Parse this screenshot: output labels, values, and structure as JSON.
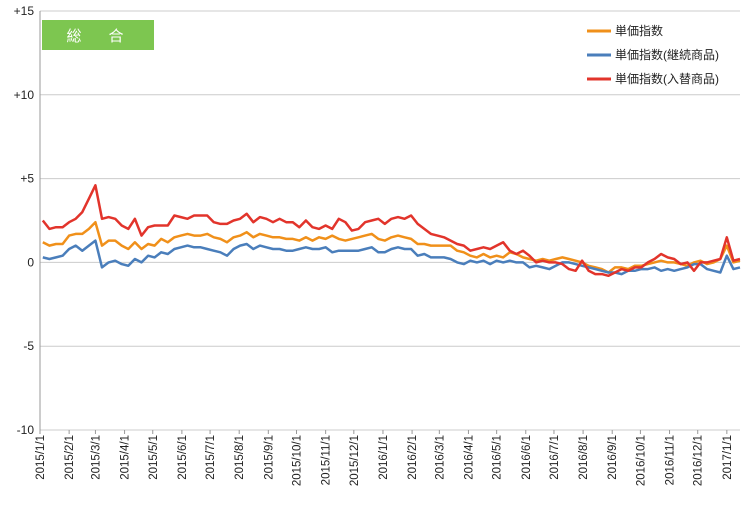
{
  "chart_data": {
    "type": "line",
    "badge": "総　合",
    "ylim": [
      -10,
      15
    ],
    "y_ticks": [
      "+15",
      "+10",
      "+5",
      "0",
      "-5",
      "-10"
    ],
    "y_tick_values": [
      15,
      10,
      5,
      0,
      -5,
      -10
    ],
    "x_tick_labels": [
      "2015/1/1",
      "2015/2/1",
      "2015/3/1",
      "2015/4/1",
      "2015/5/1",
      "2015/6/1",
      "2015/7/1",
      "2015/8/1",
      "2015/9/1",
      "2015/10/1",
      "2015/11/1",
      "2015/12/1",
      "2016/1/1",
      "2016/2/1",
      "2016/3/1",
      "2016/4/1",
      "2016/5/1",
      "2016/6/1",
      "2016/7/1",
      "2016/8/1",
      "2016/9/1",
      "2016/10/1",
      "2016/11/1",
      "2016/12/1",
      "2017/1/1"
    ],
    "x_range": [
      "2015/1/1",
      "2017/1/15"
    ],
    "grid": "horizontal",
    "legend_position": "top-right",
    "colors": {
      "badge": "#7dc650",
      "grid": "#cccccc"
    },
    "series": [
      {
        "name": "単価指数",
        "color": "#f0901a",
        "x": [
          "2015/1/4",
          "2015/1/11",
          "2015/1/18",
          "2015/1/25",
          "2015/2/1",
          "2015/2/8",
          "2015/2/15",
          "2015/2/22",
          "2015/3/1",
          "2015/3/8",
          "2015/3/15",
          "2015/3/22",
          "2015/3/29",
          "2015/4/5",
          "2015/4/12",
          "2015/4/19",
          "2015/4/26",
          "2015/5/3",
          "2015/5/10",
          "2015/5/17",
          "2015/5/24",
          "2015/5/31",
          "2015/6/7",
          "2015/6/14",
          "2015/6/21",
          "2015/6/28",
          "2015/7/5",
          "2015/7/12",
          "2015/7/19",
          "2015/7/26",
          "2015/8/2",
          "2015/8/9",
          "2015/8/16",
          "2015/8/23",
          "2015/8/30",
          "2015/9/6",
          "2015/9/13",
          "2015/9/20",
          "2015/9/27",
          "2015/10/4",
          "2015/10/11",
          "2015/10/18",
          "2015/10/25",
          "2015/11/1",
          "2015/11/8",
          "2015/11/15",
          "2015/11/22",
          "2015/11/29",
          "2015/12/6",
          "2015/12/13",
          "2015/12/20",
          "2015/12/27",
          "2016/1/3",
          "2016/1/10",
          "2016/1/17",
          "2016/1/24",
          "2016/1/31",
          "2016/2/7",
          "2016/2/14",
          "2016/2/21",
          "2016/2/28",
          "2016/3/6",
          "2016/3/13",
          "2016/3/20",
          "2016/3/27",
          "2016/4/3",
          "2016/4/10",
          "2016/4/17",
          "2016/4/24",
          "2016/5/1",
          "2016/5/8",
          "2016/5/15",
          "2016/5/22",
          "2016/5/29",
          "2016/6/5",
          "2016/6/12",
          "2016/6/19",
          "2016/6/26",
          "2016/7/3",
          "2016/7/10",
          "2016/7/17",
          "2016/7/24",
          "2016/7/31",
          "2016/8/7",
          "2016/8/14",
          "2016/8/21",
          "2016/8/28",
          "2016/9/4",
          "2016/9/11",
          "2016/9/18",
          "2016/9/25",
          "2016/10/2",
          "2016/10/9",
          "2016/10/16",
          "2016/10/23",
          "2016/10/30",
          "2016/11/6",
          "2016/11/13",
          "2016/11/20",
          "2016/11/27",
          "2016/12/4",
          "2016/12/11",
          "2016/12/18",
          "2016/12/25",
          "2017/1/1",
          "2017/1/8",
          "2017/1/15"
        ],
        "values": [
          1.2,
          1.0,
          1.1,
          1.1,
          1.6,
          1.7,
          1.7,
          2.0,
          2.4,
          1.0,
          1.3,
          1.3,
          1.0,
          0.8,
          1.2,
          0.8,
          1.1,
          1.0,
          1.4,
          1.2,
          1.5,
          1.6,
          1.7,
          1.6,
          1.6,
          1.7,
          1.5,
          1.4,
          1.2,
          1.5,
          1.6,
          1.8,
          1.5,
          1.7,
          1.6,
          1.5,
          1.5,
          1.4,
          1.4,
          1.3,
          1.5,
          1.3,
          1.5,
          1.4,
          1.6,
          1.4,
          1.3,
          1.4,
          1.5,
          1.6,
          1.7,
          1.4,
          1.3,
          1.5,
          1.6,
          1.5,
          1.4,
          1.1,
          1.1,
          1.0,
          1.0,
          1.0,
          1.0,
          0.7,
          0.6,
          0.4,
          0.3,
          0.5,
          0.3,
          0.4,
          0.3,
          0.6,
          0.5,
          0.3,
          0.2,
          0.1,
          0.2,
          0.1,
          0.2,
          0.3,
          0.2,
          0.1,
          0.0,
          -0.2,
          -0.3,
          -0.4,
          -0.6,
          -0.3,
          -0.3,
          -0.4,
          -0.2,
          -0.2,
          -0.1,
          0.0,
          0.1,
          0.0,
          0.0,
          -0.1,
          -0.2,
          0.0,
          0.1,
          -0.1,
          0.0,
          0.2,
          1.0,
          0.0,
          0.1
        ]
      },
      {
        "name": "単価指数(継続商品)",
        "color": "#4a7ebb",
        "x": [
          "2015/1/4",
          "2015/1/11",
          "2015/1/18",
          "2015/1/25",
          "2015/2/1",
          "2015/2/8",
          "2015/2/15",
          "2015/2/22",
          "2015/3/1",
          "2015/3/8",
          "2015/3/15",
          "2015/3/22",
          "2015/3/29",
          "2015/4/5",
          "2015/4/12",
          "2015/4/19",
          "2015/4/26",
          "2015/5/3",
          "2015/5/10",
          "2015/5/17",
          "2015/5/24",
          "2015/5/31",
          "2015/6/7",
          "2015/6/14",
          "2015/6/21",
          "2015/6/28",
          "2015/7/5",
          "2015/7/12",
          "2015/7/19",
          "2015/7/26",
          "2015/8/2",
          "2015/8/9",
          "2015/8/16",
          "2015/8/23",
          "2015/8/30",
          "2015/9/6",
          "2015/9/13",
          "2015/9/20",
          "2015/9/27",
          "2015/10/4",
          "2015/10/11",
          "2015/10/18",
          "2015/10/25",
          "2015/11/1",
          "2015/11/8",
          "2015/11/15",
          "2015/11/22",
          "2015/11/29",
          "2015/12/6",
          "2015/12/13",
          "2015/12/20",
          "2015/12/27",
          "2016/1/3",
          "2016/1/10",
          "2016/1/17",
          "2016/1/24",
          "2016/1/31",
          "2016/2/7",
          "2016/2/14",
          "2016/2/21",
          "2016/2/28",
          "2016/3/6",
          "2016/3/13",
          "2016/3/20",
          "2016/3/27",
          "2016/4/3",
          "2016/4/10",
          "2016/4/17",
          "2016/4/24",
          "2016/5/1",
          "2016/5/8",
          "2016/5/15",
          "2016/5/22",
          "2016/5/29",
          "2016/6/5",
          "2016/6/12",
          "2016/6/19",
          "2016/6/26",
          "2016/7/3",
          "2016/7/10",
          "2016/7/17",
          "2016/7/24",
          "2016/7/31",
          "2016/8/7",
          "2016/8/14",
          "2016/8/21",
          "2016/8/28",
          "2016/9/4",
          "2016/9/11",
          "2016/9/18",
          "2016/9/25",
          "2016/10/2",
          "2016/10/9",
          "2016/10/16",
          "2016/10/23",
          "2016/10/30",
          "2016/11/6",
          "2016/11/13",
          "2016/11/20",
          "2016/11/27",
          "2016/12/4",
          "2016/12/11",
          "2016/12/18",
          "2016/12/25",
          "2017/1/1",
          "2017/1/8",
          "2017/1/15"
        ],
        "values": [
          0.3,
          0.2,
          0.3,
          0.4,
          0.8,
          1.0,
          0.7,
          1.0,
          1.3,
          -0.3,
          0.0,
          0.1,
          -0.1,
          -0.2,
          0.2,
          0.0,
          0.4,
          0.3,
          0.6,
          0.5,
          0.8,
          0.9,
          1.0,
          0.9,
          0.9,
          0.8,
          0.7,
          0.6,
          0.4,
          0.8,
          1.0,
          1.1,
          0.8,
          1.0,
          0.9,
          0.8,
          0.8,
          0.7,
          0.7,
          0.8,
          0.9,
          0.8,
          0.8,
          0.9,
          0.6,
          0.7,
          0.7,
          0.7,
          0.7,
          0.8,
          0.9,
          0.6,
          0.6,
          0.8,
          0.9,
          0.8,
          0.8,
          0.4,
          0.5,
          0.3,
          0.3,
          0.3,
          0.2,
          0.0,
          -0.1,
          0.1,
          0.0,
          0.1,
          -0.1,
          0.1,
          0.0,
          0.1,
          0.0,
          0.0,
          -0.3,
          -0.2,
          -0.3,
          -0.4,
          -0.2,
          0.0,
          0.0,
          -0.1,
          -0.2,
          -0.3,
          -0.4,
          -0.5,
          -0.6,
          -0.6,
          -0.7,
          -0.5,
          -0.5,
          -0.4,
          -0.4,
          -0.3,
          -0.5,
          -0.4,
          -0.5,
          -0.4,
          -0.3,
          -0.1,
          -0.1,
          -0.4,
          -0.5,
          -0.6,
          0.4,
          -0.4,
          -0.3
        ]
      },
      {
        "name": "単価指数(入替商品)",
        "color": "#e2342b",
        "x": [
          "2015/1/4",
          "2015/1/11",
          "2015/1/18",
          "2015/1/25",
          "2015/2/1",
          "2015/2/8",
          "2015/2/15",
          "2015/2/22",
          "2015/3/1",
          "2015/3/8",
          "2015/3/15",
          "2015/3/22",
          "2015/3/29",
          "2015/4/5",
          "2015/4/12",
          "2015/4/19",
          "2015/4/26",
          "2015/5/3",
          "2015/5/10",
          "2015/5/17",
          "2015/5/24",
          "2015/5/31",
          "2015/6/7",
          "2015/6/14",
          "2015/6/21",
          "2015/6/28",
          "2015/7/5",
          "2015/7/12",
          "2015/7/19",
          "2015/7/26",
          "2015/8/2",
          "2015/8/9",
          "2015/8/16",
          "2015/8/23",
          "2015/8/30",
          "2015/9/6",
          "2015/9/13",
          "2015/9/20",
          "2015/9/27",
          "2015/10/4",
          "2015/10/11",
          "2015/10/18",
          "2015/10/25",
          "2015/11/1",
          "2015/11/8",
          "2015/11/15",
          "2015/11/22",
          "2015/11/29",
          "2015/12/6",
          "2015/12/13",
          "2015/12/20",
          "2015/12/27",
          "2016/1/3",
          "2016/1/10",
          "2016/1/17",
          "2016/1/24",
          "2016/1/31",
          "2016/2/7",
          "2016/2/14",
          "2016/2/21",
          "2016/2/28",
          "2016/3/6",
          "2016/3/13",
          "2016/3/20",
          "2016/3/27",
          "2016/4/3",
          "2016/4/10",
          "2016/4/17",
          "2016/4/24",
          "2016/5/1",
          "2016/5/8",
          "2016/5/15",
          "2016/5/22",
          "2016/5/29",
          "2016/6/5",
          "2016/6/12",
          "2016/6/19",
          "2016/6/26",
          "2016/7/3",
          "2016/7/10",
          "2016/7/17",
          "2016/7/24",
          "2016/7/31",
          "2016/8/7",
          "2016/8/14",
          "2016/8/21",
          "2016/8/28",
          "2016/9/4",
          "2016/9/11",
          "2016/9/18",
          "2016/9/25",
          "2016/10/2",
          "2016/10/9",
          "2016/10/16",
          "2016/10/23",
          "2016/10/30",
          "2016/11/6",
          "2016/11/13",
          "2016/11/20",
          "2016/11/27",
          "2016/12/4",
          "2016/12/11",
          "2016/12/18",
          "2016/12/25",
          "2017/1/1",
          "2017/1/8",
          "2017/1/15"
        ],
        "values": [
          2.5,
          2.0,
          2.1,
          2.1,
          2.4,
          2.6,
          3.0,
          3.8,
          4.6,
          2.6,
          2.7,
          2.6,
          2.2,
          2.0,
          2.6,
          1.6,
          2.1,
          2.2,
          2.2,
          2.2,
          2.8,
          2.7,
          2.6,
          2.8,
          2.8,
          2.8,
          2.4,
          2.3,
          2.3,
          2.5,
          2.6,
          2.9,
          2.4,
          2.7,
          2.6,
          2.4,
          2.6,
          2.4,
          2.4,
          2.1,
          2.5,
          2.1,
          2.0,
          2.2,
          2.0,
          2.6,
          2.4,
          1.9,
          2.0,
          2.4,
          2.5,
          2.6,
          2.3,
          2.6,
          2.7,
          2.6,
          2.8,
          2.3,
          2.0,
          1.7,
          1.6,
          1.5,
          1.3,
          1.1,
          1.0,
          0.7,
          0.8,
          0.9,
          0.8,
          1.0,
          1.2,
          0.7,
          0.5,
          0.7,
          0.4,
          0.0,
          0.1,
          0.0,
          0.0,
          -0.1,
          -0.4,
          -0.5,
          0.1,
          -0.5,
          -0.7,
          -0.7,
          -0.8,
          -0.6,
          -0.4,
          -0.5,
          -0.3,
          -0.3,
          0.0,
          0.2,
          0.5,
          0.3,
          0.2,
          -0.1,
          0.0,
          -0.5,
          0.0,
          0.0,
          0.1,
          0.2,
          1.5,
          0.1,
          0.2
        ]
      }
    ]
  }
}
